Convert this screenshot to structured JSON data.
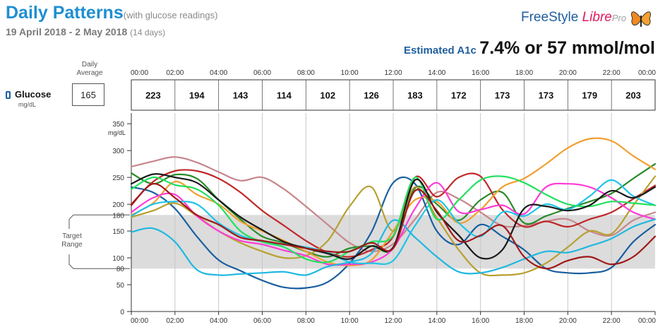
{
  "header": {
    "title": "Daily Patterns",
    "subtitle": "(with glucose readings)",
    "date_range": "19 April 2018 - 2 May 2018",
    "day_count": "(14 days)",
    "a1c_label": "Estimated A1c",
    "a1c_value": "7.4% or 57 mmol/mol"
  },
  "logo": {
    "free": "FreeStyle",
    "libre": "Libre",
    "pro": "Pro"
  },
  "glucose_row": {
    "label": "Glucose",
    "unit": "mg/dL",
    "daily_average_label": "Daily Average",
    "daily_average": "165"
  },
  "colors": {
    "target_band": "#dcdcdc",
    "gridline": "#c8c8c8"
  },
  "chart_data": {
    "type": "line",
    "x_tick_labels": [
      "00:00",
      "02:00",
      "04:00",
      "06:00",
      "08:00",
      "10:00",
      "12:00",
      "14:00",
      "16:00",
      "18:00",
      "20:00",
      "22:00",
      "00:00"
    ],
    "y_ticks": [
      0,
      50,
      100,
      150,
      200,
      250,
      300,
      350
    ],
    "y_unit": "mg/dL",
    "ylim": [
      0,
      370
    ],
    "xlim_hours": [
      0,
      24
    ],
    "target_range": {
      "low": 80,
      "high": 180,
      "label": "Target Range"
    },
    "two_hour_averages": [
      "223",
      "194",
      "143",
      "114",
      "102",
      "126",
      "183",
      "172",
      "173",
      "173",
      "179",
      "203"
    ],
    "grid": "vertical every 2 hours",
    "x_hours": [
      0,
      1,
      2,
      3,
      4,
      5,
      6,
      7,
      8,
      9,
      10,
      11,
      12,
      13,
      14,
      15,
      16,
      17,
      18,
      19,
      20,
      21,
      22,
      23,
      24
    ],
    "series": [
      {
        "color": "#c7868c",
        "values": [
          270,
          280,
          288,
          278,
          260,
          244,
          250,
          228,
          196,
          162,
          128,
          112,
          126,
          172,
          222,
          210,
          185,
          160,
          160,
          168,
          172,
          150,
          142,
          170,
          185
        ]
      },
      {
        "color": "#2a8a2a",
        "values": [
          258,
          238,
          255,
          248,
          208,
          172,
          140,
          128,
          112,
          102,
          118,
          122,
          118,
          230,
          200,
          170,
          208,
          222,
          165,
          178,
          192,
          205,
          220,
          248,
          275
        ]
      },
      {
        "color": "#c0282a",
        "values": [
          200,
          242,
          262,
          262,
          248,
          222,
          188,
          160,
          132,
          110,
          102,
          115,
          140,
          250,
          214,
          250,
          252,
          190,
          158,
          168,
          158,
          172,
          185,
          210,
          235
        ]
      },
      {
        "color": "#1a5fa0",
        "values": [
          232,
          222,
          192,
          140,
          96,
          76,
          58,
          45,
          44,
          55,
          90,
          148,
          240,
          238,
          150,
          125,
          162,
          140,
          115,
          80,
          72,
          72,
          82,
          130,
          162
        ]
      },
      {
        "color": "#f0a030",
        "values": [
          180,
          202,
          242,
          218,
          200,
          168,
          150,
          132,
          112,
          92,
          86,
          96,
          150,
          208,
          205,
          165,
          190,
          232,
          248,
          275,
          305,
          322,
          318,
          290,
          265
        ]
      },
      {
        "color": "#b8a030",
        "values": [
          176,
          188,
          202,
          178,
          150,
          128,
          112,
          100,
          104,
          132,
          196,
          232,
          150,
          232,
          175,
          115,
          72,
          68,
          72,
          90,
          120,
          150,
          145,
          198,
          252
        ]
      },
      {
        "color": "#ff3ad8",
        "values": [
          185,
          212,
          218,
          178,
          150,
          132,
          125,
          114,
          104,
          88,
          88,
          92,
          118,
          192,
          240,
          186,
          190,
          198,
          182,
          232,
          238,
          232,
          212,
          185,
          172
        ]
      },
      {
        "color": "#20c4e8",
        "values": [
          178,
          200,
          205,
          200,
          165,
          142,
          130,
          125,
          120,
          110,
          92,
          90,
          95,
          160,
          208,
          165,
          140,
          185,
          178,
          200,
          190,
          215,
          245,
          215,
          198
        ]
      },
      {
        "color": "#1fb8e0",
        "values": [
          148,
          155,
          130,
          78,
          68,
          70,
          72,
          74,
          68,
          84,
          92,
          108,
          170,
          138,
          102,
          74,
          72,
          82,
          98,
          112,
          110,
          122,
          136,
          158,
          172
        ]
      },
      {
        "color": "#22e060",
        "values": [
          228,
          250,
          236,
          228,
          198,
          150,
          130,
          120,
          98,
          92,
          112,
          130,
          142,
          250,
          172,
          208,
          245,
          252,
          240,
          218,
          200,
          196,
          205,
          202,
          198
        ]
      },
      {
        "color": "#1a1a1a",
        "values": [
          238,
          256,
          250,
          240,
          208,
          176,
          152,
          130,
          118,
          108,
          98,
          122,
          120,
          245,
          185,
          142,
          100,
          115,
          192,
          196,
          188,
          198,
          225,
          212,
          232
        ]
      },
      {
        "color": "#a01818",
        "values": [
          198,
          238,
          212,
          180,
          162,
          138,
          132,
          125,
          118,
          112,
          112,
          128,
          118,
          225,
          188,
          132,
          142,
          160,
          102,
          80,
          95,
          102,
          88,
          102,
          140
        ]
      }
    ]
  }
}
